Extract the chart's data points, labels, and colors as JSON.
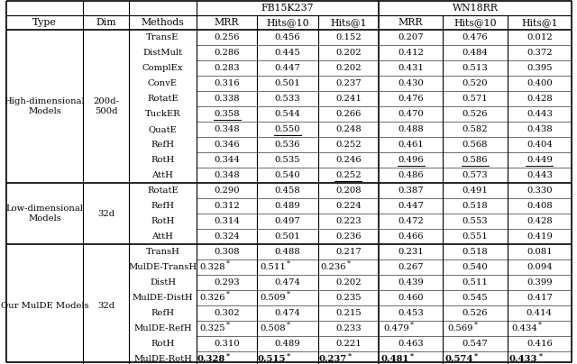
{
  "sections": [
    {
      "type": "High-dimensional\nModels",
      "dim": "200d-\n500d",
      "rows": [
        {
          "method": "TransE",
          "vals": [
            "0.256",
            "0.456",
            "0.152",
            "0.207",
            "0.476",
            "0.012"
          ],
          "ul": [],
          "star": [],
          "bold": []
        },
        {
          "method": "DistMult",
          "vals": [
            "0.286",
            "0.445",
            "0.202",
            "0.412",
            "0.484",
            "0.372"
          ],
          "ul": [],
          "star": [],
          "bold": []
        },
        {
          "method": "ComplEx",
          "vals": [
            "0.283",
            "0.447",
            "0.202",
            "0.431",
            "0.513",
            "0.395"
          ],
          "ul": [],
          "star": [],
          "bold": []
        },
        {
          "method": "ConvE",
          "vals": [
            "0.316",
            "0.501",
            "0.237",
            "0.430",
            "0.520",
            "0.400"
          ],
          "ul": [],
          "star": [],
          "bold": []
        },
        {
          "method": "RotatE",
          "vals": [
            "0.338",
            "0.533",
            "0.241",
            "0.476",
            "0.571",
            "0.428"
          ],
          "ul": [],
          "star": [],
          "bold": []
        },
        {
          "method": "TuckER",
          "vals": [
            "0.358",
            "0.544",
            "0.266",
            "0.470",
            "0.526",
            "0.443"
          ],
          "ul": [
            0
          ],
          "star": [],
          "bold": []
        },
        {
          "method": "QuatE",
          "vals": [
            "0.348",
            "0.550",
            "0.248",
            "0.488",
            "0.582",
            "0.438"
          ],
          "ul": [
            1
          ],
          "star": [],
          "bold": []
        },
        {
          "method": "RefH",
          "vals": [
            "0.346",
            "0.536",
            "0.252",
            "0.461",
            "0.568",
            "0.404"
          ],
          "ul": [],
          "star": [],
          "bold": []
        },
        {
          "method": "RotH",
          "vals": [
            "0.344",
            "0.535",
            "0.246",
            "0.496",
            "0.586",
            "0.449"
          ],
          "ul": [
            3,
            4,
            5
          ],
          "star": [],
          "bold": []
        },
        {
          "method": "AttH",
          "vals": [
            "0.348",
            "0.540",
            "0.252",
            "0.486",
            "0.573",
            "0.443"
          ],
          "ul": [
            2
          ],
          "star": [],
          "bold": []
        }
      ]
    },
    {
      "type": "Low-dimensional\nModels",
      "dim": "32d",
      "rows": [
        {
          "method": "RotatE",
          "vals": [
            "0.290",
            "0.458",
            "0.208",
            "0.387",
            "0.491",
            "0.330"
          ],
          "ul": [],
          "star": [],
          "bold": []
        },
        {
          "method": "RefH",
          "vals": [
            "0.312",
            "0.489",
            "0.224",
            "0.447",
            "0.518",
            "0.408"
          ],
          "ul": [],
          "star": [],
          "bold": []
        },
        {
          "method": "RotH",
          "vals": [
            "0.314",
            "0.497",
            "0.223",
            "0.472",
            "0.553",
            "0.428"
          ],
          "ul": [],
          "star": [],
          "bold": []
        },
        {
          "method": "AttH",
          "vals": [
            "0.324",
            "0.501",
            "0.236",
            "0.466",
            "0.551",
            "0.419"
          ],
          "ul": [],
          "star": [],
          "bold": []
        }
      ]
    },
    {
      "type": "Our MulDE Models",
      "dim": "32d",
      "rows": [
        {
          "method": "TransH",
          "vals": [
            "0.308",
            "0.488",
            "0.217",
            "0.231",
            "0.518",
            "0.081"
          ],
          "ul": [],
          "star": [],
          "bold": []
        },
        {
          "method": "MulDE-TransH",
          "vals": [
            "0.328",
            "0.511",
            "0.236",
            "0.267",
            "0.540",
            "0.094"
          ],
          "ul": [],
          "star": [
            0,
            1,
            2
          ],
          "bold": []
        },
        {
          "method": "DistH",
          "vals": [
            "0.293",
            "0.474",
            "0.202",
            "0.439",
            "0.511",
            "0.399"
          ],
          "ul": [],
          "star": [],
          "bold": []
        },
        {
          "method": "MulDE-DistH",
          "vals": [
            "0.326",
            "0.509",
            "0.235",
            "0.460",
            "0.545",
            "0.417"
          ],
          "ul": [],
          "star": [
            0,
            1
          ],
          "bold": []
        },
        {
          "method": "RefH",
          "vals": [
            "0.302",
            "0.474",
            "0.215",
            "0.453",
            "0.526",
            "0.414"
          ],
          "ul": [],
          "star": [],
          "bold": []
        },
        {
          "method": "MulDE-RefH",
          "vals": [
            "0.325",
            "0.508",
            "0.233",
            "0.479",
            "0.569",
            "0.434"
          ],
          "ul": [],
          "star": [
            0,
            1,
            3,
            4,
            5
          ],
          "bold": []
        },
        {
          "method": "RotH",
          "vals": [
            "0.310",
            "0.489",
            "0.221",
            "0.463",
            "0.547",
            "0.416"
          ],
          "ul": [],
          "star": [],
          "bold": []
        },
        {
          "method": "MulDE-RotH",
          "vals": [
            "0.328",
            "0.515",
            "0.237",
            "0.481",
            "0.574",
            "0.433"
          ],
          "ul": [],
          "star": [
            0,
            1,
            2,
            3,
            4,
            5
          ],
          "bold": [
            0,
            1,
            2,
            3,
            4,
            5
          ]
        }
      ]
    }
  ],
  "bg_color": "#ffffff",
  "font_size": 7.2,
  "header_font_size": 7.8
}
